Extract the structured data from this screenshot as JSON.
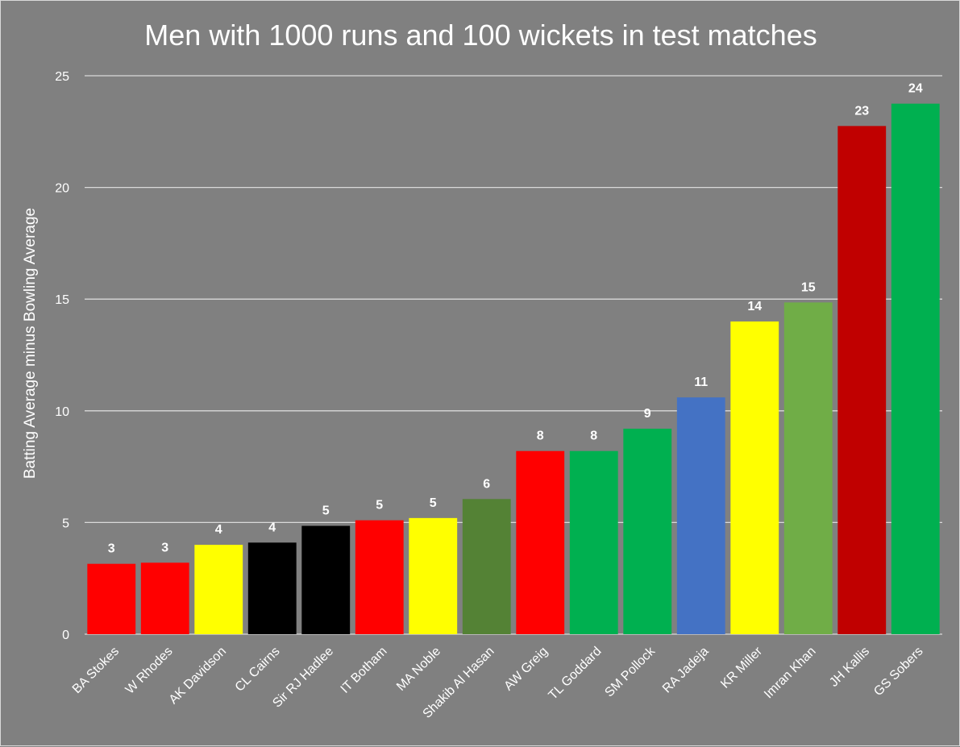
{
  "chart_data": {
    "type": "bar",
    "title": "Men with 1000 runs and 100 wickets in test matches",
    "xlabel": "",
    "ylabel": "Batting Average minus Bowling Average",
    "ylim": [
      0,
      25
    ],
    "yticks": [
      0,
      5,
      10,
      15,
      20,
      25
    ],
    "grid": true,
    "legend": "none",
    "categories": [
      "BA Stokes",
      "W Rhodes",
      "AK Davidson",
      "CL Cairns",
      "Sir RJ Hadlee",
      "IT Botham",
      "MA Noble",
      "Shakib Al Hasan",
      "AW Greig",
      "TL Goddard",
      "SM Pollock",
      "RA Jadeja",
      "KR Miller",
      "Imran Khan",
      "JH Kallis",
      "GS Sobers"
    ],
    "values": [
      3.15,
      3.2,
      4.0,
      4.1,
      4.85,
      5.1,
      5.2,
      6.05,
      8.2,
      8.2,
      9.2,
      10.6,
      14.0,
      14.85,
      22.75,
      23.75
    ],
    "data_labels": [
      "3",
      "3",
      "4",
      "4",
      "5",
      "5",
      "5",
      "6",
      "8",
      "8",
      "9",
      "11",
      "14",
      "15",
      "23",
      "24"
    ],
    "colors": [
      "#ff0000",
      "#ff0000",
      "#ffff00",
      "#000000",
      "#000000",
      "#ff0000",
      "#ffff00",
      "#548235",
      "#ff0000",
      "#00b050",
      "#00b050",
      "#4472c4",
      "#ffff00",
      "#70ad47",
      "#c00000",
      "#00b050"
    ],
    "background_color": "#808080",
    "text_color": "#ffffff",
    "gridline_color": "#d9d9d9"
  }
}
